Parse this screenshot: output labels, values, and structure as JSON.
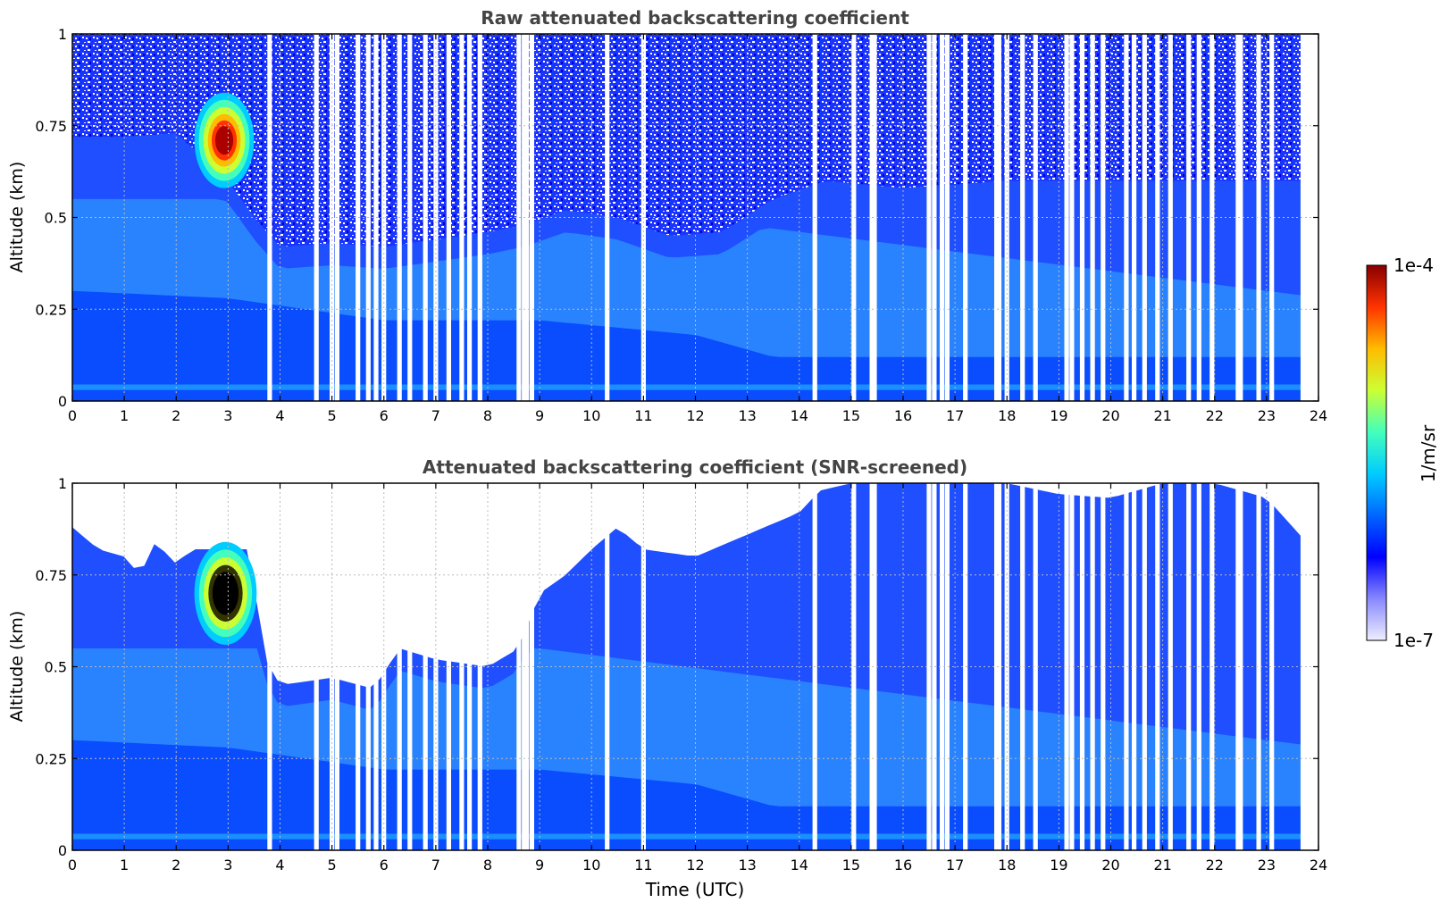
{
  "chart_data": [
    {
      "type": "heatmap",
      "title": "Raw attenuated backscattering coefficient",
      "xlabel": "",
      "ylabel": "Altitude (km)",
      "xlim": [
        0,
        24
      ],
      "ylim": [
        0,
        1
      ],
      "xticks": [
        "0",
        "1",
        "2",
        "3",
        "4",
        "5",
        "6",
        "7",
        "8",
        "9",
        "10",
        "11",
        "12",
        "13",
        "14",
        "15",
        "16",
        "17",
        "18",
        "19",
        "20",
        "21",
        "22",
        "23",
        "24"
      ],
      "yticks": [
        "0",
        "0.25",
        "0.5",
        "0.75",
        "1"
      ],
      "grid": true,
      "data_end_time": 23.7,
      "noise_top_boundary": [
        [
          0,
          0.72
        ],
        [
          1,
          0.72
        ],
        [
          2,
          0.73
        ],
        [
          3,
          0.6
        ],
        [
          3.5,
          0.5
        ],
        [
          4,
          0.42
        ],
        [
          5,
          0.43
        ],
        [
          6,
          0.42
        ],
        [
          7,
          0.44
        ],
        [
          8,
          0.46
        ],
        [
          8.7,
          0.48
        ],
        [
          9.5,
          0.52
        ],
        [
          10.5,
          0.5
        ],
        [
          11.5,
          0.45
        ],
        [
          12.5,
          0.46
        ],
        [
          13.5,
          0.55
        ],
        [
          14.5,
          0.6
        ],
        [
          16,
          0.58
        ],
        [
          18,
          0.6
        ],
        [
          20,
          0.6
        ],
        [
          22,
          0.6
        ],
        [
          23.7,
          0.6
        ]
      ],
      "dense_layer_top": [
        [
          0,
          0.3
        ],
        [
          3,
          0.28
        ],
        [
          6,
          0.22
        ],
        [
          9,
          0.22
        ],
        [
          12,
          0.18
        ],
        [
          13.5,
          0.12
        ],
        [
          16,
          0.12
        ],
        [
          20,
          0.12
        ],
        [
          23.7,
          0.12
        ]
      ],
      "cloud_feature": {
        "time_range": [
          2.35,
          3.5
        ],
        "altitude_range": [
          0.58,
          0.84
        ],
        "max_value": "1e-4"
      },
      "missing_data_times": [
        3.8,
        4.7,
        5.0,
        5.1,
        5.5,
        5.7,
        5.85,
        6.0,
        6.3,
        6.5,
        6.8,
        7.0,
        7.25,
        7.5,
        7.65,
        7.85,
        8.6,
        8.7,
        8.75,
        8.85,
        10.3,
        11.0,
        14.3,
        15.05,
        15.4,
        15.45,
        16.5,
        16.6,
        16.75,
        16.85,
        17.2,
        17.8,
        17.85,
        18.0,
        18.3,
        18.55,
        19.15,
        19.25,
        19.45,
        19.65,
        19.85,
        20.3,
        20.45,
        20.65,
        20.9,
        21.15,
        21.5,
        21.7,
        21.95,
        22.45,
        22.5,
        22.85,
        23.1,
        23.7
      ]
    },
    {
      "type": "heatmap",
      "title": "Attenuated backscattering coefficient (SNR-screened)",
      "xlabel": "Time (UTC)",
      "ylabel": "Altitude (km)",
      "xlim": [
        0,
        24
      ],
      "ylim": [
        0,
        1
      ],
      "xticks": [
        "0",
        "1",
        "2",
        "3",
        "4",
        "5",
        "6",
        "7",
        "8",
        "9",
        "10",
        "11",
        "12",
        "13",
        "14",
        "15",
        "16",
        "17",
        "18",
        "19",
        "20",
        "21",
        "22",
        "23",
        "24"
      ],
      "yticks": [
        "0",
        "0.25",
        "0.5",
        "0.75",
        "1"
      ],
      "grid": true,
      "data_end_time": 23.7,
      "signal_top_boundary": [
        [
          0,
          0.88
        ],
        [
          0.5,
          0.82
        ],
        [
          1,
          0.8
        ],
        [
          1.3,
          0.75
        ],
        [
          1.6,
          0.84
        ],
        [
          2,
          0.78
        ],
        [
          2.3,
          0.82
        ],
        [
          3,
          0.82
        ],
        [
          3.5,
          0.82
        ],
        [
          3.6,
          0.55
        ],
        [
          4,
          0.45
        ],
        [
          5,
          0.47
        ],
        [
          5.8,
          0.44
        ],
        [
          6.3,
          0.55
        ],
        [
          7,
          0.52
        ],
        [
          8,
          0.5
        ],
        [
          8.6,
          0.55
        ],
        [
          9,
          0.7
        ],
        [
          9.5,
          0.75
        ],
        [
          10,
          0.82
        ],
        [
          10.5,
          0.88
        ],
        [
          11,
          0.82
        ],
        [
          12,
          0.8
        ],
        [
          13,
          0.86
        ],
        [
          14,
          0.92
        ],
        [
          14.4,
          0.98
        ],
        [
          15,
          1
        ],
        [
          17,
          1
        ],
        [
          18,
          1
        ],
        [
          19,
          0.97
        ],
        [
          20,
          0.96
        ],
        [
          21,
          1
        ],
        [
          22,
          1
        ],
        [
          23,
          0.96
        ],
        [
          23.7,
          0.85
        ]
      ],
      "dense_layer_top": [
        [
          0,
          0.3
        ],
        [
          3,
          0.28
        ],
        [
          6,
          0.22
        ],
        [
          9,
          0.22
        ],
        [
          12,
          0.18
        ],
        [
          13.5,
          0.12
        ],
        [
          16,
          0.12
        ],
        [
          20,
          0.12
        ],
        [
          23.7,
          0.12
        ]
      ],
      "cloud_feature": {
        "time_range": [
          2.35,
          3.55
        ],
        "altitude_range": [
          0.56,
          0.84
        ],
        "max_value": "1e-4"
      },
      "missing_data_times": [
        3.8,
        4.7,
        5.0,
        5.1,
        5.5,
        5.7,
        5.85,
        6.0,
        6.3,
        6.5,
        6.8,
        7.0,
        7.25,
        7.5,
        7.65,
        7.85,
        8.6,
        8.7,
        8.75,
        8.85,
        10.3,
        11.0,
        14.3,
        15.05,
        15.4,
        15.45,
        16.5,
        16.6,
        16.75,
        16.85,
        17.2,
        17.8,
        17.85,
        18.0,
        18.3,
        18.55,
        19.15,
        19.25,
        19.45,
        19.65,
        19.85,
        20.3,
        20.45,
        20.65,
        20.9,
        21.15,
        21.5,
        21.7,
        21.95,
        22.45,
        22.5,
        22.85,
        23.1,
        23.7
      ]
    }
  ],
  "colorbar": {
    "label": "1/m/sr",
    "min_label": "1e-7",
    "max_label": "1e-4",
    "colormap": "jet",
    "colors": [
      "#eeeeff",
      "#8888ff",
      "#0000ff",
      "#0066ff",
      "#00ccff",
      "#44ffbb",
      "#ccff33",
      "#ffbb00",
      "#ff3300",
      "#880000"
    ]
  }
}
